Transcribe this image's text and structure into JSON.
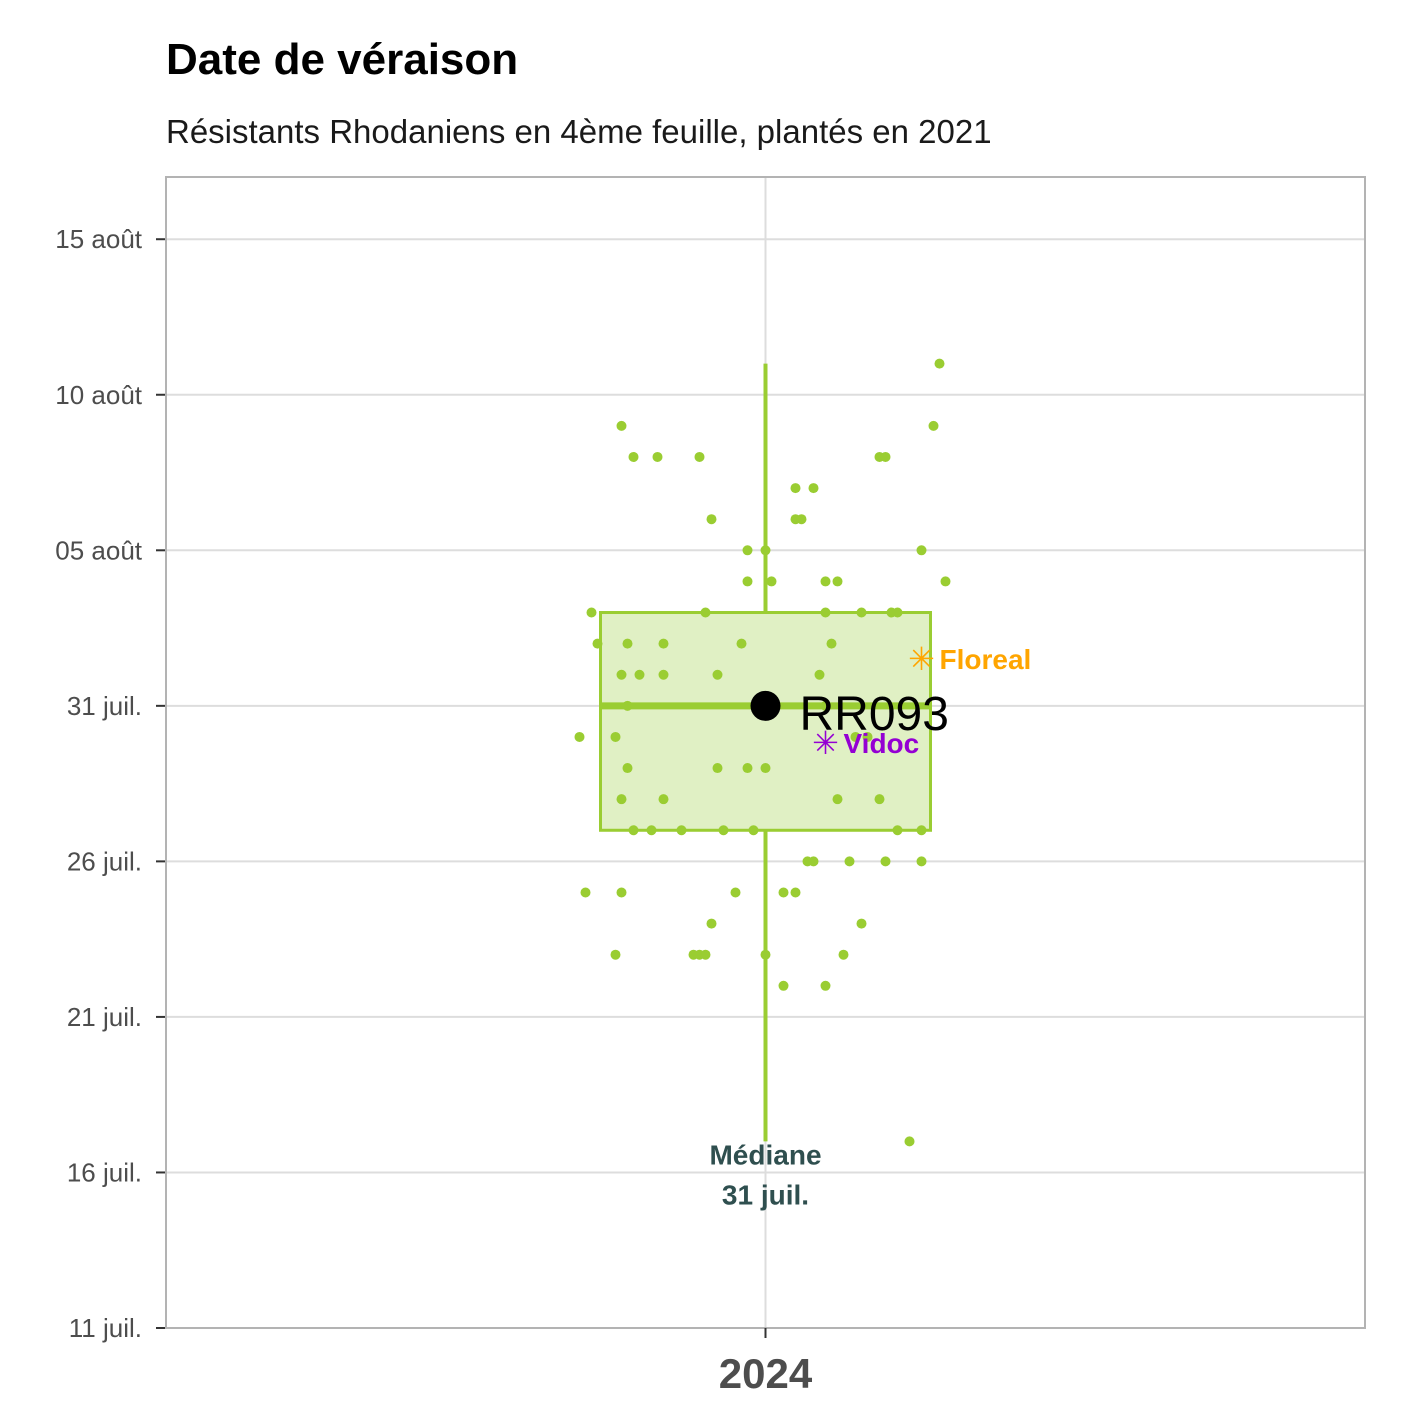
{
  "chart_data": {
    "type": "boxplot",
    "title": "Date de véraison",
    "subtitle": "Résistants Rhodaniens en 4ème feuille, plantés en 2021",
    "xlabel": "",
    "ylabel": "",
    "categories": [
      "2024"
    ],
    "y_axis": {
      "type": "date",
      "min": "2024-07-11",
      "max": "2024-08-17",
      "ticks": [
        {
          "value": "2024-07-11",
          "label": "11 juil."
        },
        {
          "value": "2024-07-16",
          "label": "16 juil."
        },
        {
          "value": "2024-07-21",
          "label": "21 juil."
        },
        {
          "value": "2024-07-26",
          "label": "26 juil."
        },
        {
          "value": "2024-07-31",
          "label": "31 juil."
        },
        {
          "value": "2024-08-05",
          "label": "05 août"
        },
        {
          "value": "2024-08-10",
          "label": "10 août"
        },
        {
          "value": "2024-08-15",
          "label": "15 août"
        }
      ]
    },
    "grid": true,
    "colors": {
      "box": "#9acd32",
      "box_fill": "#e0f0c4",
      "points": "#9acd32",
      "highlight": "#000000",
      "floreal": "#ffa500",
      "vidoc": "#9400d3",
      "median_label": "#2f4f4f",
      "grid": "#dddddd",
      "border": "#b3b3b3"
    },
    "box": {
      "category": "2024",
      "whisker_low": "2024-07-17",
      "q1": "2024-07-27",
      "median": "2024-07-31",
      "q3": "2024-08-03",
      "whisker_high": "2024-08-11"
    },
    "points": [
      {
        "x_offset": 0.29,
        "y": "2024-08-11"
      },
      {
        "x_offset": 0.28,
        "y": "2024-08-09"
      },
      {
        "x_offset": -0.24,
        "y": "2024-08-09"
      },
      {
        "x_offset": -0.22,
        "y": "2024-08-08"
      },
      {
        "x_offset": -0.18,
        "y": "2024-08-08"
      },
      {
        "x_offset": -0.11,
        "y": "2024-08-08"
      },
      {
        "x_offset": 0.19,
        "y": "2024-08-08"
      },
      {
        "x_offset": 0.2,
        "y": "2024-08-08"
      },
      {
        "x_offset": 0.05,
        "y": "2024-08-07"
      },
      {
        "x_offset": 0.08,
        "y": "2024-08-07"
      },
      {
        "x_offset": -0.09,
        "y": "2024-08-06"
      },
      {
        "x_offset": 0.05,
        "y": "2024-08-06"
      },
      {
        "x_offset": 0.06,
        "y": "2024-08-06"
      },
      {
        "x_offset": -0.03,
        "y": "2024-08-05"
      },
      {
        "x_offset": 0.0,
        "y": "2024-08-05"
      },
      {
        "x_offset": 0.26,
        "y": "2024-08-05"
      },
      {
        "x_offset": -0.03,
        "y": "2024-08-04"
      },
      {
        "x_offset": 0.01,
        "y": "2024-08-04"
      },
      {
        "x_offset": 0.1,
        "y": "2024-08-04"
      },
      {
        "x_offset": 0.12,
        "y": "2024-08-04"
      },
      {
        "x_offset": 0.3,
        "y": "2024-08-04"
      },
      {
        "x_offset": -0.29,
        "y": "2024-08-03"
      },
      {
        "x_offset": -0.1,
        "y": "2024-08-03"
      },
      {
        "x_offset": 0.1,
        "y": "2024-08-03"
      },
      {
        "x_offset": 0.16,
        "y": "2024-08-03"
      },
      {
        "x_offset": 0.21,
        "y": "2024-08-03"
      },
      {
        "x_offset": 0.22,
        "y": "2024-08-03"
      },
      {
        "x_offset": -0.28,
        "y": "2024-08-02"
      },
      {
        "x_offset": -0.23,
        "y": "2024-08-02"
      },
      {
        "x_offset": -0.17,
        "y": "2024-08-02"
      },
      {
        "x_offset": -0.04,
        "y": "2024-08-02"
      },
      {
        "x_offset": 0.11,
        "y": "2024-08-02"
      },
      {
        "x_offset": -0.24,
        "y": "2024-08-01"
      },
      {
        "x_offset": -0.21,
        "y": "2024-08-01"
      },
      {
        "x_offset": -0.17,
        "y": "2024-08-01"
      },
      {
        "x_offset": -0.08,
        "y": "2024-08-01"
      },
      {
        "x_offset": 0.09,
        "y": "2024-08-01"
      },
      {
        "x_offset": -0.23,
        "y": "2024-07-31"
      },
      {
        "x_offset": 0.1,
        "y": "2024-07-31"
      },
      {
        "x_offset": -0.31,
        "y": "2024-07-30"
      },
      {
        "x_offset": -0.25,
        "y": "2024-07-30"
      },
      {
        "x_offset": 0.15,
        "y": "2024-07-30"
      },
      {
        "x_offset": 0.17,
        "y": "2024-07-30"
      },
      {
        "x_offset": -0.23,
        "y": "2024-07-29"
      },
      {
        "x_offset": -0.08,
        "y": "2024-07-29"
      },
      {
        "x_offset": -0.03,
        "y": "2024-07-29"
      },
      {
        "x_offset": 0.0,
        "y": "2024-07-29"
      },
      {
        "x_offset": -0.24,
        "y": "2024-07-28"
      },
      {
        "x_offset": -0.17,
        "y": "2024-07-28"
      },
      {
        "x_offset": 0.12,
        "y": "2024-07-28"
      },
      {
        "x_offset": 0.19,
        "y": "2024-07-28"
      },
      {
        "x_offset": -0.22,
        "y": "2024-07-27"
      },
      {
        "x_offset": -0.19,
        "y": "2024-07-27"
      },
      {
        "x_offset": -0.14,
        "y": "2024-07-27"
      },
      {
        "x_offset": -0.07,
        "y": "2024-07-27"
      },
      {
        "x_offset": -0.02,
        "y": "2024-07-27"
      },
      {
        "x_offset": 0.22,
        "y": "2024-07-27"
      },
      {
        "x_offset": 0.26,
        "y": "2024-07-27"
      },
      {
        "x_offset": 0.07,
        "y": "2024-07-26"
      },
      {
        "x_offset": 0.08,
        "y": "2024-07-26"
      },
      {
        "x_offset": 0.14,
        "y": "2024-07-26"
      },
      {
        "x_offset": 0.2,
        "y": "2024-07-26"
      },
      {
        "x_offset": 0.26,
        "y": "2024-07-26"
      },
      {
        "x_offset": -0.3,
        "y": "2024-07-25"
      },
      {
        "x_offset": -0.24,
        "y": "2024-07-25"
      },
      {
        "x_offset": -0.05,
        "y": "2024-07-25"
      },
      {
        "x_offset": 0.03,
        "y": "2024-07-25"
      },
      {
        "x_offset": 0.05,
        "y": "2024-07-25"
      },
      {
        "x_offset": -0.09,
        "y": "2024-07-24"
      },
      {
        "x_offset": 0.16,
        "y": "2024-07-24"
      },
      {
        "x_offset": -0.25,
        "y": "2024-07-23"
      },
      {
        "x_offset": -0.12,
        "y": "2024-07-23"
      },
      {
        "x_offset": -0.11,
        "y": "2024-07-23"
      },
      {
        "x_offset": -0.1,
        "y": "2024-07-23"
      },
      {
        "x_offset": 0.0,
        "y": "2024-07-23"
      },
      {
        "x_offset": 0.13,
        "y": "2024-07-23"
      },
      {
        "x_offset": 0.03,
        "y": "2024-07-22"
      },
      {
        "x_offset": 0.1,
        "y": "2024-07-22"
      },
      {
        "x_offset": 0.24,
        "y": "2024-07-17"
      }
    ],
    "highlight": {
      "label": "RR093",
      "y": "2024-07-31",
      "x_offset": 0.0
    },
    "references": [
      {
        "label": "Floreal",
        "y": "2024-08-01.5",
        "x_offset": 0.26,
        "color": "#ffa500"
      },
      {
        "label": "Vidoc",
        "y": "2024-07-29.8",
        "x_offset": 0.1,
        "color": "#9400d3"
      }
    ],
    "median_annotation": {
      "line1": "Médiane",
      "line2": "31 juil."
    }
  }
}
